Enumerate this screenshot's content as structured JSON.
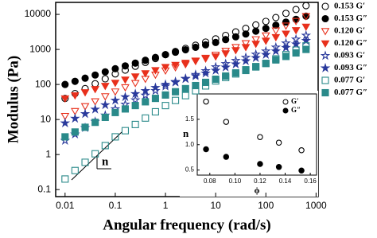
{
  "chart_data": [
    {
      "type": "scatter",
      "xlabel": "Angular frequency (rad/s)",
      "ylabel": "Modulus (Pa)",
      "log_x": true,
      "log_y": true,
      "xlim": [
        0.0065,
        1100
      ],
      "ylim": [
        0.063,
        22000
      ],
      "xticks": [
        0.01,
        0.1,
        1,
        10,
        100,
        1000
      ],
      "yticks": [
        0.1,
        1,
        10,
        100,
        1000,
        10000
      ],
      "annotations": [
        "n"
      ],
      "x": [
        0.01,
        0.0158,
        0.0251,
        0.0398,
        0.0631,
        0.1,
        0.158,
        0.251,
        0.398,
        0.631,
        1,
        1.58,
        2.51,
        3.98,
        6.31,
        10,
        15.8,
        25.1,
        39.8,
        63.1,
        100,
        158,
        251,
        398,
        631
      ],
      "series": [
        {
          "name": "0.153 G′",
          "color": "#000000",
          "marker": "circle",
          "filled": false,
          "values": [
            40,
            55,
            76,
            105,
            145,
            200,
            257,
            331,
            427,
            550,
            708,
            871,
            1070,
            1320,
            1620,
            2000,
            2510,
            3160,
            3980,
            5010,
            6310,
            8130,
            10700,
            13800,
            17800
          ]
        },
        {
          "name": "0.153 G″",
          "color": "#000000",
          "marker": "circle",
          "filled": true,
          "values": [
            100,
            123,
            151,
            186,
            229,
            282,
            339,
            407,
            490,
            589,
            708,
            832,
            977,
            1150,
            1350,
            1580,
            1910,
            2290,
            2750,
            3310,
            3980,
            4900,
            6030,
            7240,
            8910
          ]
        },
        {
          "name": "0.120 G′",
          "color": "#e8301c",
          "marker": "triangle",
          "filled": false,
          "values": [
            12.6,
            17.4,
            24,
            33,
            46,
            63,
            83,
            110,
            145,
            191,
            251,
            309,
            380,
            468,
            575,
            708,
            912,
            1170,
            1510,
            1950,
            2510,
            3470,
            4790,
            6460,
            8910
          ]
        },
        {
          "name": "0.120 G″",
          "color": "#e8301c",
          "marker": "triangle",
          "filled": true,
          "values": [
            40,
            49,
            60,
            74,
            91,
            112,
            138,
            170,
            209,
            257,
            316,
            363,
            417,
            479,
            550,
            631,
            776,
            955,
            1170,
            1450,
            1780,
            2240,
            2820,
            3550,
            4470
          ]
        },
        {
          "name": "0.093 G′",
          "color": "#2a3a9c",
          "marker": "star",
          "filled": false,
          "values": [
            2.5,
            3.8,
            5.8,
            8.7,
            13.2,
            20,
            27,
            36,
            49,
            66,
            89,
            115,
            148,
            191,
            245,
            316,
            389,
            479,
            589,
            724,
            891,
            1150,
            1510,
            1950,
            2510
          ]
        },
        {
          "name": "0.093 G″",
          "color": "#2a3a9c",
          "marker": "star",
          "filled": true,
          "values": [
            7.9,
            10.7,
            14.5,
            19.5,
            26,
            35,
            44,
            54,
            66,
            81,
            100,
            120,
            145,
            174,
            209,
            251,
            309,
            380,
            468,
            575,
            708,
            891,
            1120,
            1410,
            1780
          ]
        },
        {
          "name": "0.077 G′",
          "color": "#2a8a8a",
          "marker": "square",
          "filled": false,
          "values": [
            0.2,
            0.35,
            0.6,
            1.05,
            1.8,
            3.2,
            4.8,
            7.2,
            11,
            16.6,
            25,
            35,
            48,
            66,
            91,
            126,
            158,
            200,
            251,
            316,
            398,
            537,
            708,
            955,
            1260
          ]
        },
        {
          "name": "0.077 G″",
          "color": "#2a8a8a",
          "marker": "square",
          "filled": true,
          "values": [
            3.2,
            4.4,
            6,
            8.3,
            11.5,
            15.8,
            20,
            25,
            32,
            40,
            50,
            62,
            76,
            93,
            115,
            141,
            174,
            214,
            263,
            324,
            398,
            501,
            631,
            794,
            1000
          ]
        }
      ]
    },
    {
      "type": "scatter",
      "xlabel": "ϕ",
      "ylabel": "n",
      "xlim": [
        0.07,
        0.165
      ],
      "ylim": [
        0.4,
        2.0
      ],
      "xticks": [
        0.08,
        {
          "value": 0.1,
          "label": "0.10"
        },
        0.12,
        0.14,
        0.16
      ],
      "yticks": [
        0.5,
        {
          "value": 1.0,
          "label": "1.0"
        },
        1.5
      ],
      "x": [
        0.077,
        0.093,
        0.12,
        0.135,
        0.153
      ],
      "series": [
        {
          "name": "G′",
          "color": "#000000",
          "marker": "circle",
          "filled": false,
          "values": [
            1.85,
            1.45,
            1.15,
            1.04,
            0.89
          ]
        },
        {
          "name": "G″",
          "color": "#000000",
          "marker": "circle",
          "filled": true,
          "values": [
            0.91,
            0.76,
            0.62,
            0.56,
            0.49
          ]
        }
      ]
    }
  ]
}
